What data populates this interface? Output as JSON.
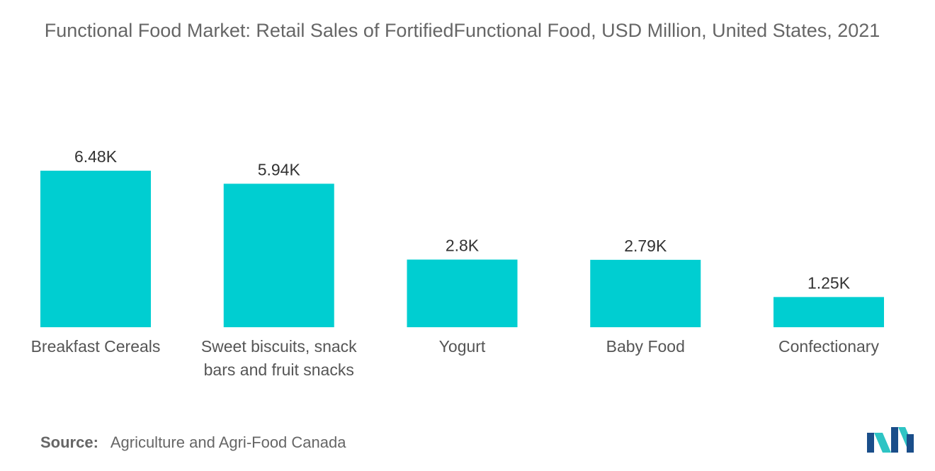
{
  "chart_data": {
    "type": "bar",
    "title": "Functional Food Market: Retail Sales of FortifiedFunctional Food, USD Million, United States, 2021",
    "categories": [
      [
        "Breakfast Cereals"
      ],
      [
        "Sweet biscuits, snack",
        "bars and fruit snacks"
      ],
      [
        "Yogurt"
      ],
      [
        "Baby Food"
      ],
      [
        "Confectionary"
      ]
    ],
    "values": [
      6480,
      5940,
      2800,
      2790,
      1250
    ],
    "value_labels": [
      "6.48K",
      "5.94K",
      "2.8K",
      "2.79K",
      "1.25K"
    ],
    "ylim": [
      0,
      6480
    ],
    "bar_color": "#00CED1",
    "grid": false,
    "legend": "none"
  },
  "source": {
    "label": "Source:",
    "text": "Agriculture and Agri-Food Canada"
  },
  "logo": {
    "icon": "mordor-intelligence-logo-icon",
    "colors": [
      "#1a4e8a",
      "#2ec4c4"
    ]
  }
}
